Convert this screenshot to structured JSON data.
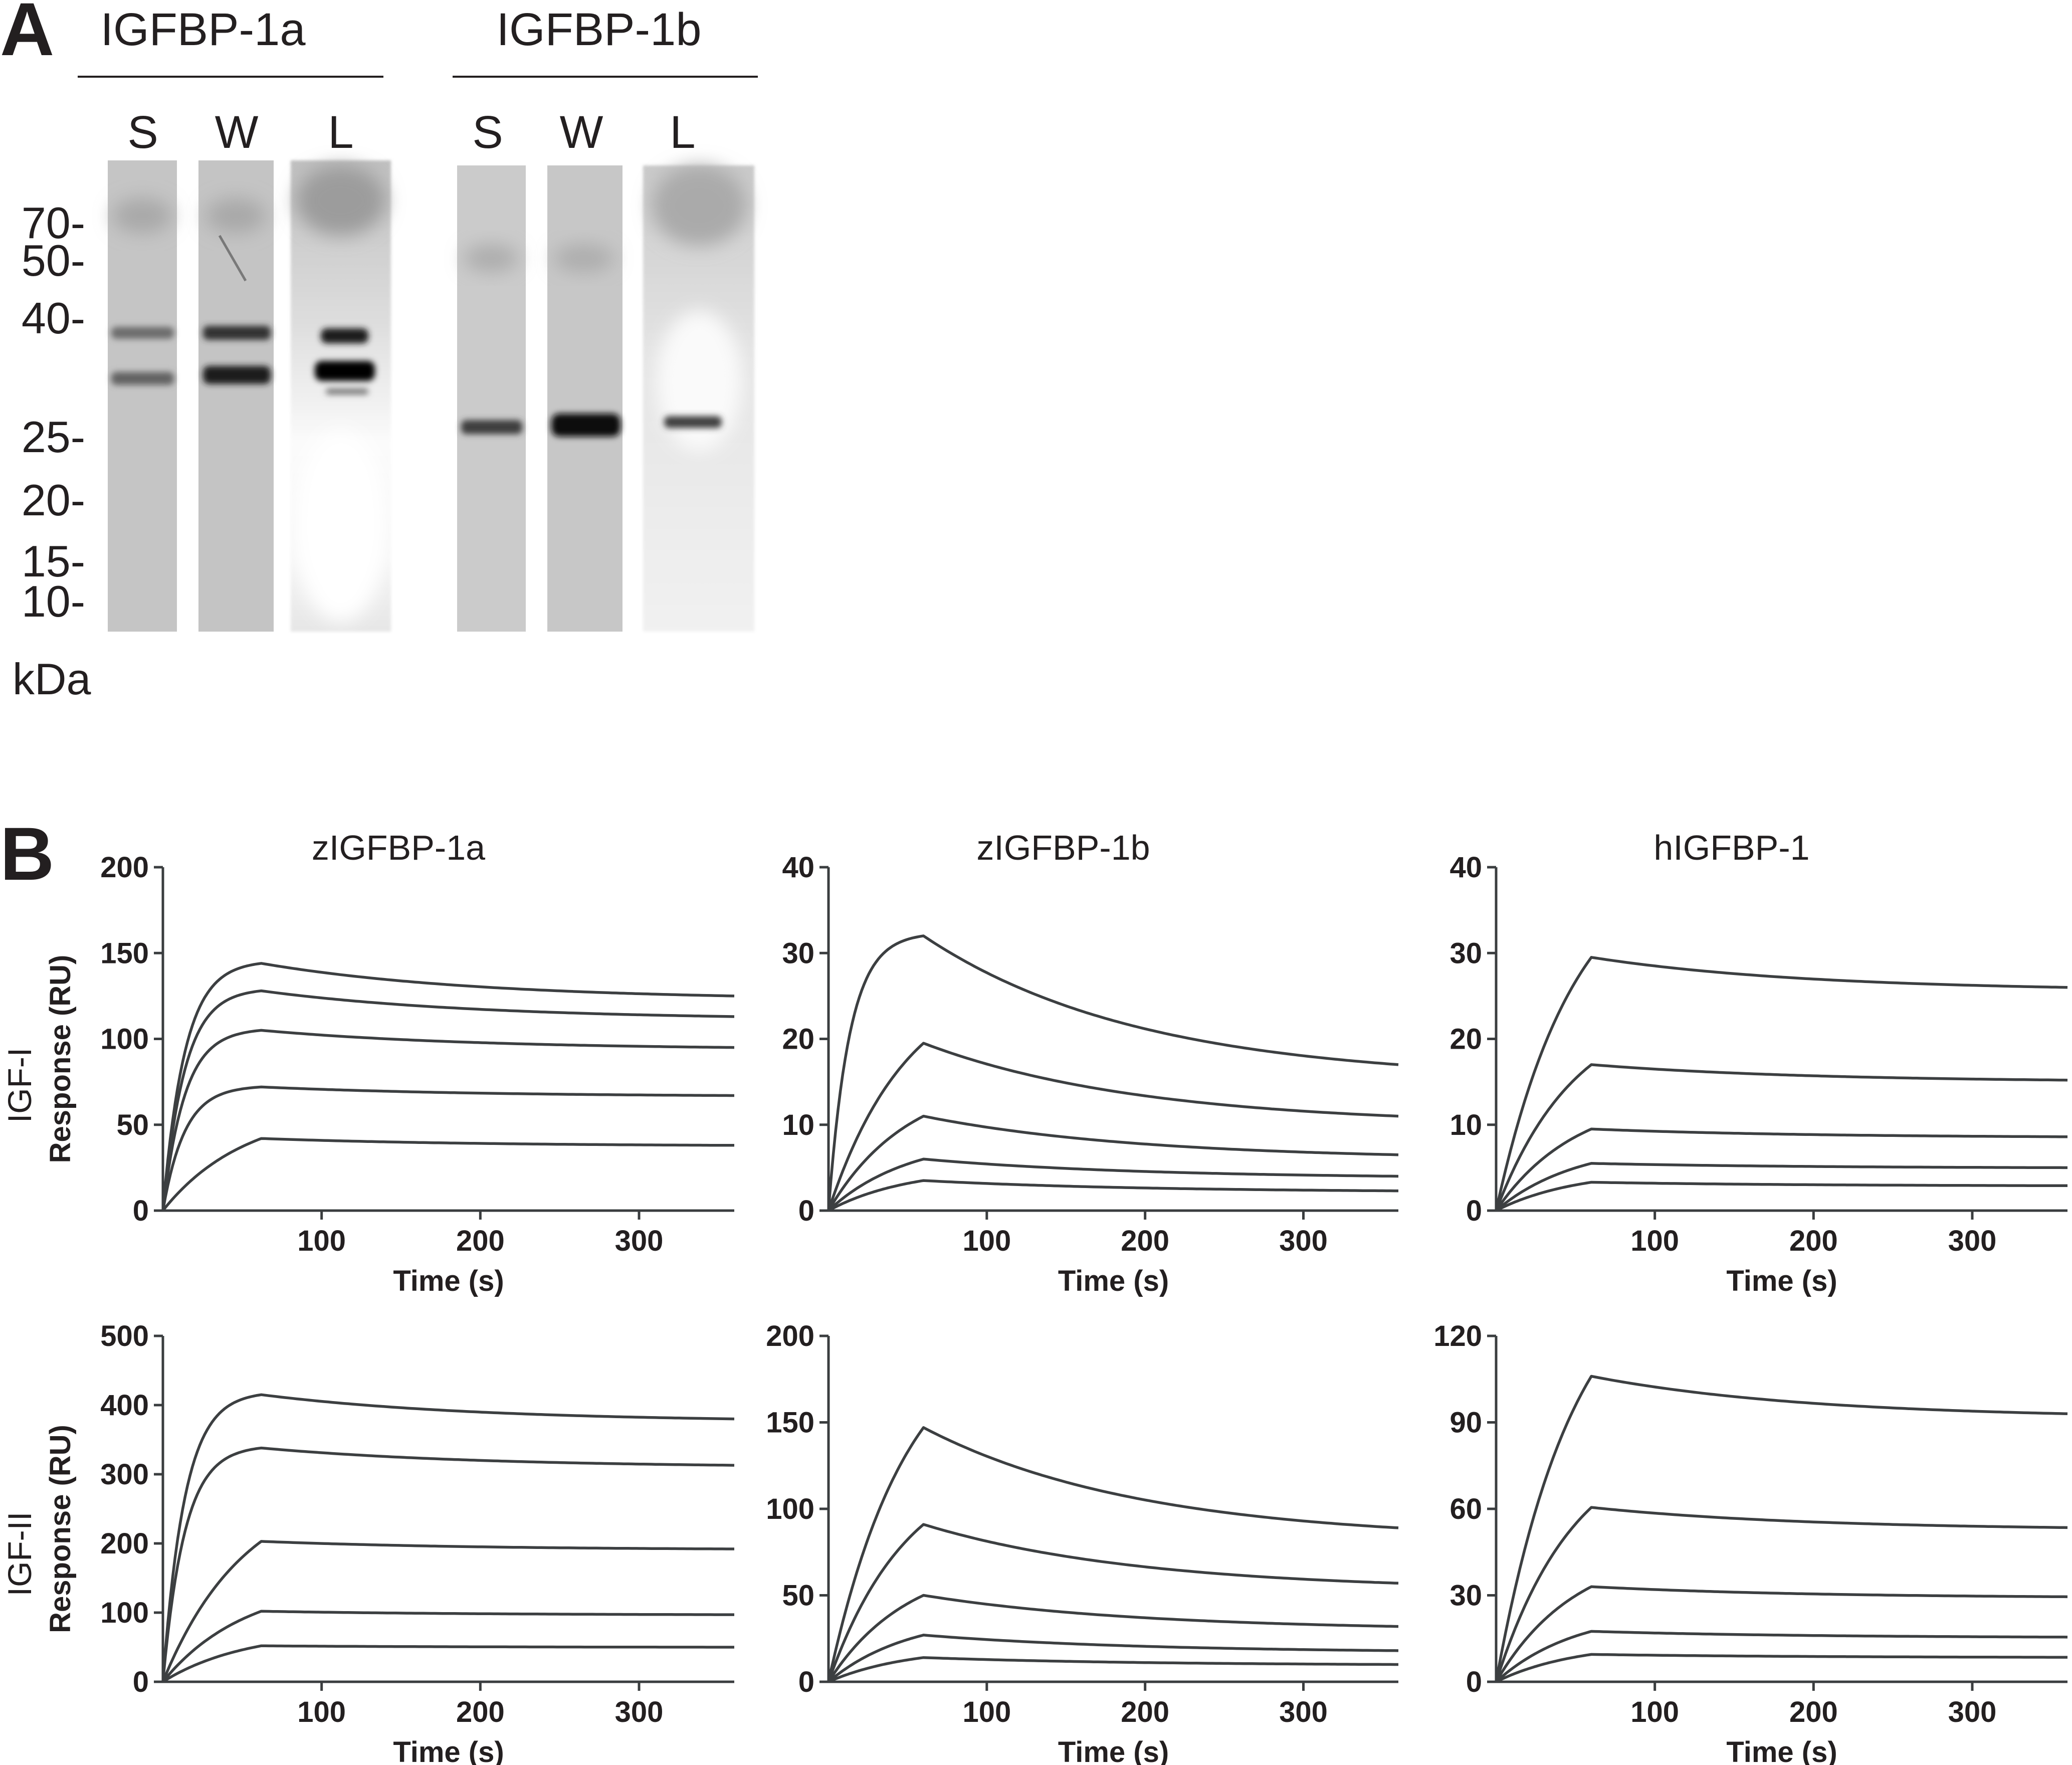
{
  "panel_a": {
    "letter": "A",
    "groups": [
      {
        "title": "IGFBP-1a",
        "lanes": [
          "S",
          "W",
          "L"
        ]
      },
      {
        "title": "IGFBP-1b",
        "lanes": [
          "S",
          "W",
          "L"
        ]
      }
    ],
    "mw_markers": [
      "70-",
      "50-",
      "40-",
      "25-",
      "20-",
      "15-",
      "10-"
    ],
    "unit": "kDa"
  },
  "panel_b": {
    "letter": "B",
    "columns": [
      "zIGFBP-1a",
      "zIGFBP-1b",
      "hIGFBP-1"
    ],
    "rows": [
      "IGF-I",
      "IGF-II"
    ]
  },
  "chart_data": [
    {
      "type": "line",
      "title": "zIGFBP-1a",
      "row": "IGF-I",
      "xlabel": "Time (s)",
      "ylabel": "Response (RU)",
      "xlim": [
        0,
        360
      ],
      "ylim": [
        0,
        200
      ],
      "xticks": [
        100,
        200,
        300
      ],
      "yticks": [
        0,
        50,
        100,
        150,
        200
      ],
      "inject_end": 62,
      "series": [
        {
          "values_at": {
            "peak": 144,
            "end": 125
          },
          "shape": "saturating"
        },
        {
          "values_at": {
            "peak": 128,
            "end": 113
          },
          "shape": "saturating"
        },
        {
          "values_at": {
            "peak": 105,
            "end": 95
          },
          "shape": "saturating"
        },
        {
          "values_at": {
            "peak": 72,
            "end": 67
          },
          "shape": "saturating"
        },
        {
          "values_at": {
            "peak": 42,
            "end": 38
          },
          "shape": "linear"
        }
      ]
    },
    {
      "type": "line",
      "title": "zIGFBP-1b",
      "row": "IGF-I",
      "xlabel": "Time (s)",
      "ylabel": "",
      "xlim": [
        0,
        360
      ],
      "ylim": [
        0,
        40
      ],
      "xticks": [
        100,
        200,
        300
      ],
      "yticks": [
        0,
        10,
        20,
        30,
        40
      ],
      "inject_end": 60,
      "series": [
        {
          "values_at": {
            "peak": 32,
            "end": 17
          },
          "shape": "saturating"
        },
        {
          "values_at": {
            "peak": 19.5,
            "end": 11
          },
          "shape": "linear"
        },
        {
          "values_at": {
            "peak": 11,
            "end": 6.5
          },
          "shape": "linear"
        },
        {
          "values_at": {
            "peak": 6,
            "end": 4
          },
          "shape": "linear"
        },
        {
          "values_at": {
            "peak": 3.5,
            "end": 2.3
          },
          "shape": "linear"
        }
      ]
    },
    {
      "type": "line",
      "title": "hIGFBP-1",
      "row": "IGF-I",
      "xlabel": "Time (s)",
      "ylabel": "",
      "xlim": [
        0,
        360
      ],
      "ylim": [
        0,
        40
      ],
      "xticks": [
        100,
        200,
        300
      ],
      "yticks": [
        0,
        10,
        20,
        30,
        40
      ],
      "inject_end": 60,
      "series": [
        {
          "values_at": {
            "peak": 29.5,
            "end": 26
          },
          "shape": "linear"
        },
        {
          "values_at": {
            "peak": 17,
            "end": 15.2
          },
          "shape": "linear"
        },
        {
          "values_at": {
            "peak": 9.5,
            "end": 8.6
          },
          "shape": "linear"
        },
        {
          "values_at": {
            "peak": 5.5,
            "end": 5
          },
          "shape": "linear"
        },
        {
          "values_at": {
            "peak": 3.3,
            "end": 2.9
          },
          "shape": "linear"
        }
      ]
    },
    {
      "type": "line",
      "title": "zIGFBP-1a",
      "row": "IGF-II",
      "xlabel": "Time (s)",
      "ylabel": "Response (RU)",
      "xlim": [
        0,
        360
      ],
      "ylim": [
        0,
        500
      ],
      "xticks": [
        100,
        200,
        300
      ],
      "yticks": [
        0,
        100,
        200,
        300,
        400,
        500
      ],
      "inject_end": 62,
      "series": [
        {
          "values_at": {
            "peak": 415,
            "end": 380
          },
          "shape": "saturating"
        },
        {
          "values_at": {
            "peak": 338,
            "end": 313
          },
          "shape": "saturating"
        },
        {
          "values_at": {
            "peak": 203,
            "end": 192
          },
          "shape": "linear"
        },
        {
          "values_at": {
            "peak": 102,
            "end": 97
          },
          "shape": "linear"
        },
        {
          "values_at": {
            "peak": 52,
            "end": 50
          },
          "shape": "linear"
        }
      ]
    },
    {
      "type": "line",
      "title": "zIGFBP-1b",
      "row": "IGF-II",
      "xlabel": "Time (s)",
      "ylabel": "",
      "xlim": [
        0,
        360
      ],
      "ylim": [
        0,
        200
      ],
      "xticks": [
        100,
        200,
        300
      ],
      "yticks": [
        0,
        50,
        100,
        150,
        200
      ],
      "inject_end": 60,
      "series": [
        {
          "values_at": {
            "peak": 147,
            "end": 89
          },
          "shape": "linear"
        },
        {
          "values_at": {
            "peak": 91,
            "end": 57
          },
          "shape": "linear"
        },
        {
          "values_at": {
            "peak": 50,
            "end": 32
          },
          "shape": "linear"
        },
        {
          "values_at": {
            "peak": 27,
            "end": 18
          },
          "shape": "linear"
        },
        {
          "values_at": {
            "peak": 14,
            "end": 10
          },
          "shape": "linear"
        }
      ]
    },
    {
      "type": "line",
      "title": "hIGFBP-1",
      "row": "IGF-II",
      "xlabel": "Time (s)",
      "ylabel": "",
      "xlim": [
        0,
        360
      ],
      "ylim": [
        0,
        120
      ],
      "xticks": [
        100,
        200,
        300
      ],
      "yticks": [
        0,
        30,
        60,
        90,
        120
      ],
      "inject_end": 60,
      "series": [
        {
          "values_at": {
            "peak": 106,
            "end": 93
          },
          "shape": "linear"
        },
        {
          "values_at": {
            "peak": 60.5,
            "end": 53.5
          },
          "shape": "linear"
        },
        {
          "values_at": {
            "peak": 33,
            "end": 29.5
          },
          "shape": "linear"
        },
        {
          "values_at": {
            "peak": 17.5,
            "end": 15.5
          },
          "shape": "linear"
        },
        {
          "values_at": {
            "peak": 9.5,
            "end": 8.5
          },
          "shape": "linear"
        }
      ]
    }
  ]
}
